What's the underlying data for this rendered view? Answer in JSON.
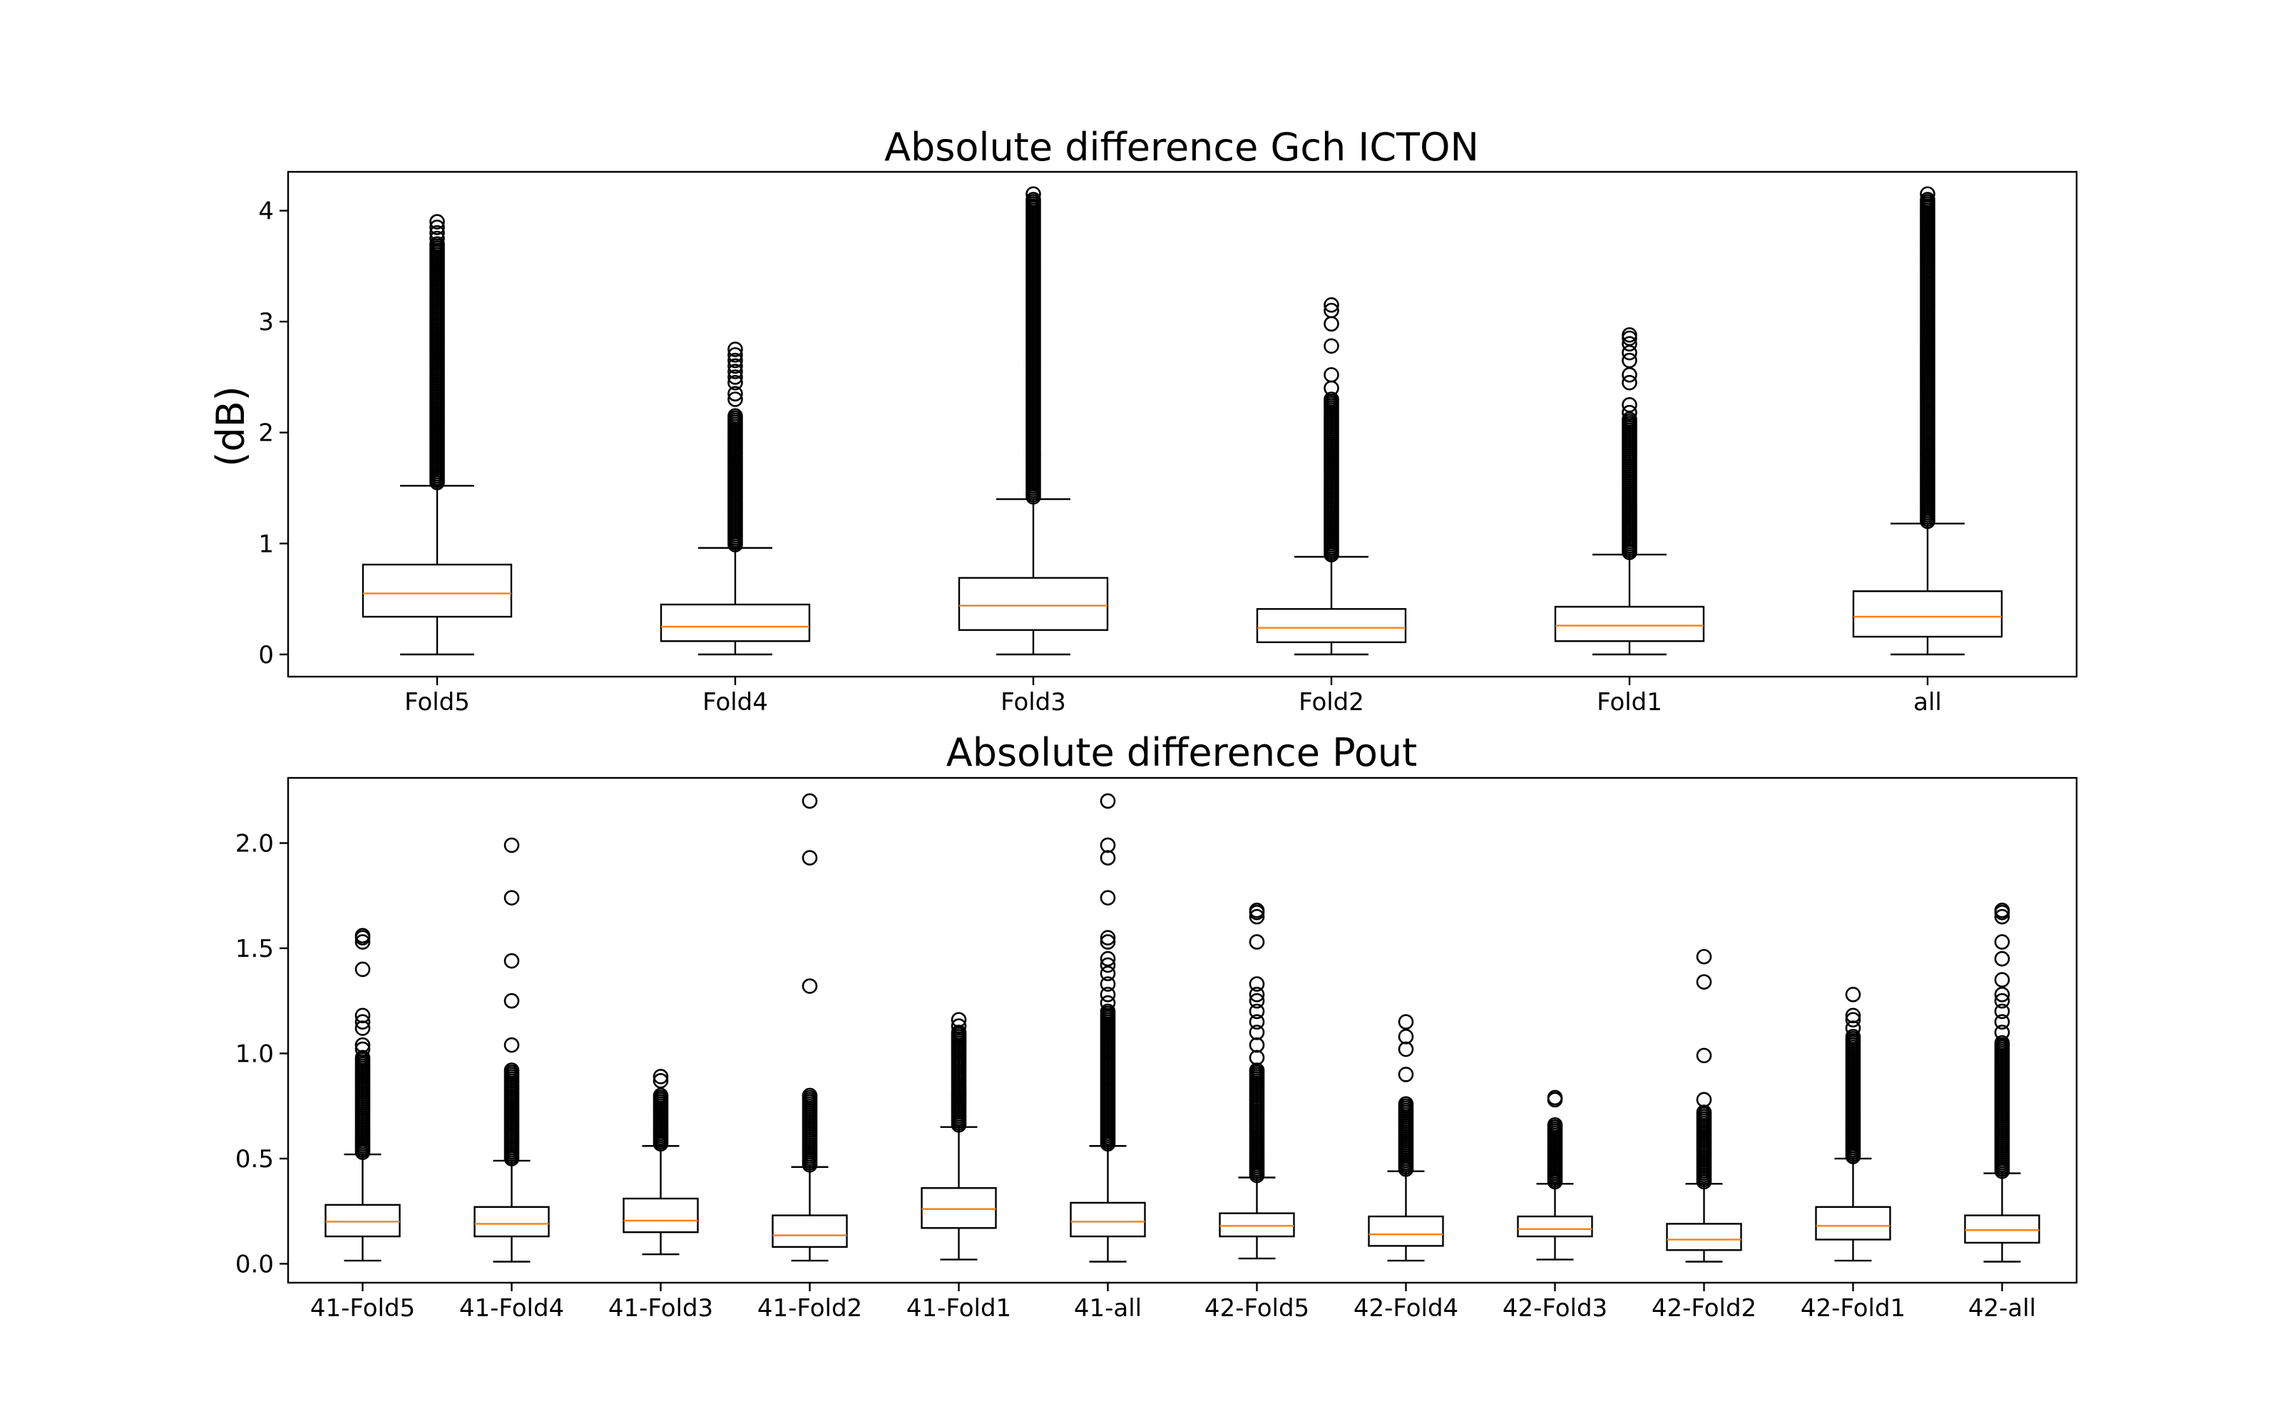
{
  "chart_data": [
    {
      "type": "box",
      "title": "Absolute difference Gch ICTON",
      "ylabel": "(dB)",
      "xlabel": "",
      "ylim": [
        -0.2,
        4.35
      ],
      "yticks": [
        "0",
        "1",
        "2",
        "3",
        "4"
      ],
      "ytick_values": [
        0,
        1,
        2,
        3,
        4
      ],
      "grid": false,
      "categories": [
        "Fold5",
        "Fold4",
        "Fold3",
        "Fold2",
        "Fold1",
        "all"
      ],
      "boxes": [
        {
          "label": "Fold5",
          "whislo": 0.0,
          "q1": 0.34,
          "med": 0.55,
          "q3": 0.81,
          "whishi": 1.52,
          "fliers_dense": [
            1.55,
            3.7
          ],
          "fliers": [
            3.75,
            3.8,
            3.85,
            3.9
          ]
        },
        {
          "label": "Fold4",
          "whislo": 0.0,
          "q1": 0.12,
          "med": 0.25,
          "q3": 0.45,
          "whishi": 0.96,
          "fliers_dense": [
            0.99,
            2.15
          ],
          "fliers": [
            2.3,
            2.35,
            2.45,
            2.5,
            2.55,
            2.6,
            2.65,
            2.7,
            2.75
          ]
        },
        {
          "label": "Fold3",
          "whislo": 0.0,
          "q1": 0.22,
          "med": 0.44,
          "q3": 0.69,
          "whishi": 1.4,
          "fliers_dense": [
            1.42,
            4.1
          ],
          "fliers": [
            4.15
          ]
        },
        {
          "label": "Fold2",
          "whislo": 0.0,
          "q1": 0.11,
          "med": 0.24,
          "q3": 0.41,
          "whishi": 0.88,
          "fliers_dense": [
            0.9,
            2.3
          ],
          "fliers": [
            2.4,
            2.52,
            2.78,
            2.98,
            3.1,
            3.15
          ]
        },
        {
          "label": "Fold1",
          "whislo": 0.0,
          "q1": 0.12,
          "med": 0.26,
          "q3": 0.43,
          "whishi": 0.9,
          "fliers_dense": [
            0.92,
            2.12
          ],
          "fliers": [
            2.18,
            2.25,
            2.45,
            2.52,
            2.65,
            2.72,
            2.8,
            2.85,
            2.88
          ]
        },
        {
          "label": "all",
          "whislo": 0.0,
          "q1": 0.16,
          "med": 0.34,
          "q3": 0.57,
          "whishi": 1.18,
          "fliers_dense": [
            1.2,
            4.1
          ],
          "fliers": [
            4.15
          ]
        }
      ]
    },
    {
      "type": "box",
      "title": "Absolute difference Pout",
      "ylabel": "",
      "xlabel": "",
      "ylim": [
        -0.09,
        2.31
      ],
      "yticks": [
        "0.0",
        "0.5",
        "1.0",
        "1.5",
        "2.0"
      ],
      "ytick_values": [
        0.0,
        0.5,
        1.0,
        1.5,
        2.0
      ],
      "grid": false,
      "categories": [
        "41-Fold5",
        "41-Fold4",
        "41-Fold3",
        "41-Fold2",
        "41-Fold1",
        "41-all",
        "42-Fold5",
        "42-Fold4",
        "42-Fold3",
        "42-Fold2",
        "42-Fold1",
        "42-all"
      ],
      "boxes": [
        {
          "label": "41-Fold5",
          "whislo": 0.015,
          "q1": 0.13,
          "med": 0.2,
          "q3": 0.28,
          "whishi": 0.52,
          "fliers_dense": [
            0.53,
            0.98
          ],
          "fliers": [
            1.02,
            1.04,
            1.12,
            1.15,
            1.18,
            1.4,
            1.53,
            1.55,
            1.56
          ]
        },
        {
          "label": "41-Fold4",
          "whislo": 0.01,
          "q1": 0.13,
          "med": 0.19,
          "q3": 0.27,
          "whishi": 0.49,
          "fliers_dense": [
            0.5,
            0.92
          ],
          "fliers": [
            1.04,
            1.25,
            1.44,
            1.74,
            1.99
          ]
        },
        {
          "label": "41-Fold3",
          "whislo": 0.045,
          "q1": 0.15,
          "med": 0.205,
          "q3": 0.31,
          "whishi": 0.56,
          "fliers_dense": [
            0.57,
            0.8
          ],
          "fliers": [
            0.87,
            0.89
          ]
        },
        {
          "label": "41-Fold2",
          "whislo": 0.015,
          "q1": 0.08,
          "med": 0.135,
          "q3": 0.23,
          "whishi": 0.46,
          "fliers_dense": [
            0.47,
            0.8
          ],
          "fliers": [
            1.32,
            1.93,
            2.2
          ]
        },
        {
          "label": "41-Fold1",
          "whislo": 0.02,
          "q1": 0.17,
          "med": 0.26,
          "q3": 0.36,
          "whishi": 0.65,
          "fliers_dense": [
            0.66,
            1.1
          ],
          "fliers": [
            1.13,
            1.16
          ]
        },
        {
          "label": "41-all",
          "whislo": 0.01,
          "q1": 0.13,
          "med": 0.2,
          "q3": 0.29,
          "whishi": 0.56,
          "fliers_dense": [
            0.57,
            1.2
          ],
          "fliers": [
            1.24,
            1.28,
            1.33,
            1.38,
            1.42,
            1.45,
            1.53,
            1.55,
            1.74,
            1.93,
            1.99,
            2.2
          ]
        },
        {
          "label": "42-Fold5",
          "whislo": 0.025,
          "q1": 0.13,
          "med": 0.18,
          "q3": 0.24,
          "whishi": 0.41,
          "fliers_dense": [
            0.42,
            0.92
          ],
          "fliers": [
            0.98,
            1.04,
            1.1,
            1.15,
            1.2,
            1.25,
            1.28,
            1.33,
            1.53,
            1.65,
            1.67,
            1.68
          ]
        },
        {
          "label": "42-Fold4",
          "whislo": 0.015,
          "q1": 0.085,
          "med": 0.14,
          "q3": 0.225,
          "whishi": 0.44,
          "fliers_dense": [
            0.45,
            0.76
          ],
          "fliers": [
            0.9,
            1.02,
            1.08,
            1.15
          ]
        },
        {
          "label": "42-Fold3",
          "whislo": 0.02,
          "q1": 0.13,
          "med": 0.165,
          "q3": 0.225,
          "whishi": 0.38,
          "fliers_dense": [
            0.39,
            0.66
          ],
          "fliers": [
            0.78,
            0.79
          ]
        },
        {
          "label": "42-Fold2",
          "whislo": 0.01,
          "q1": 0.065,
          "med": 0.115,
          "q3": 0.19,
          "whishi": 0.38,
          "fliers_dense": [
            0.39,
            0.72
          ],
          "fliers": [
            0.78,
            0.99,
            1.34,
            1.46
          ]
        },
        {
          "label": "42-Fold1",
          "whislo": 0.015,
          "q1": 0.115,
          "med": 0.18,
          "q3": 0.27,
          "whishi": 0.5,
          "fliers_dense": [
            0.51,
            1.08
          ],
          "fliers": [
            1.12,
            1.16,
            1.18,
            1.28
          ]
        },
        {
          "label": "42-all",
          "whislo": 0.01,
          "q1": 0.1,
          "med": 0.16,
          "q3": 0.23,
          "whishi": 0.43,
          "fliers_dense": [
            0.44,
            1.05
          ],
          "fliers": [
            1.1,
            1.15,
            1.2,
            1.25,
            1.28,
            1.35,
            1.45,
            1.53,
            1.65,
            1.67,
            1.68
          ]
        }
      ]
    }
  ]
}
